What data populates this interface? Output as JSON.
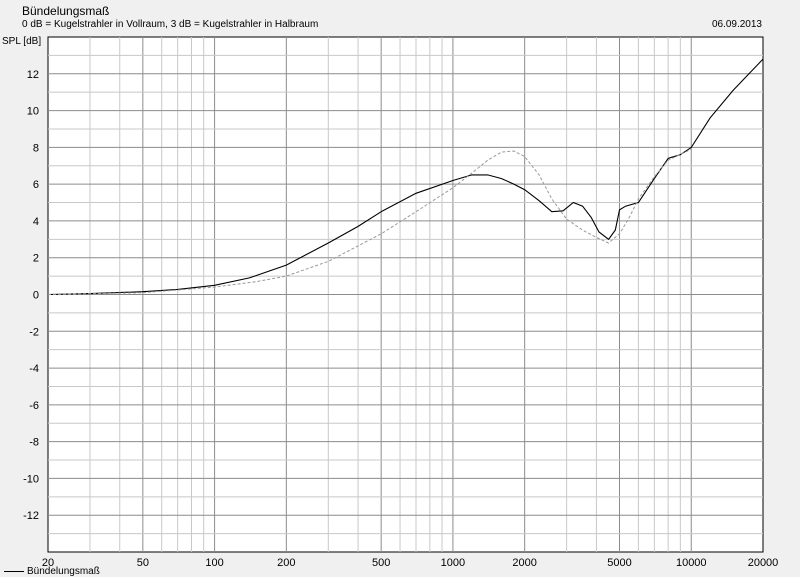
{
  "chart_data": {
    "type": "line",
    "title": "Bündelungsmaß",
    "subtitle": "0 dB = Kugelstrahler in Vollraum, 3 dB = Kugelstrahler in Halbraum",
    "date": "06.09.2013",
    "ylabel": "SPL [dB]",
    "xscale": "log",
    "xlim": [
      20,
      20000
    ],
    "ylim": [
      -14,
      14
    ],
    "grid": true,
    "legend_position": "bottom-left",
    "x_tick_labels": [
      "20",
      "50",
      "100",
      "200",
      "500",
      "1000",
      "2000",
      "5000",
      "10000",
      "20000"
    ],
    "y_tick_labels": [
      "12",
      "10",
      "8",
      "6",
      "4",
      "2",
      "0",
      "-2",
      "-4",
      "-6",
      "-8",
      "-10",
      "-12"
    ],
    "series": [
      {
        "name": "Bündelungsmaß",
        "style": "solid",
        "color": "#000000",
        "x": [
          20,
          30,
          50,
          70,
          100,
          140,
          200,
          300,
          400,
          500,
          700,
          1000,
          1200,
          1400,
          1600,
          1800,
          2000,
          2300,
          2600,
          2900,
          3200,
          3500,
          3800,
          4100,
          4500,
          4800,
          5000,
          5300,
          6000,
          7000,
          8000,
          9000,
          10000,
          12000,
          15000,
          20000
        ],
        "y": [
          0.0,
          0.05,
          0.15,
          0.28,
          0.5,
          0.9,
          1.6,
          2.8,
          3.7,
          4.5,
          5.5,
          6.2,
          6.5,
          6.5,
          6.3,
          6.0,
          5.7,
          5.1,
          4.5,
          4.55,
          5.0,
          4.8,
          4.2,
          3.4,
          3.0,
          3.5,
          4.6,
          4.8,
          5.0,
          6.3,
          7.4,
          7.6,
          8.0,
          9.6,
          11.1,
          12.8
        ]
      },
      {
        "name": "",
        "style": "dashed",
        "color": "#999999",
        "x": [
          20,
          50,
          100,
          150,
          200,
          300,
          500,
          700,
          1000,
          1200,
          1400,
          1600,
          1800,
          2000,
          2300,
          2600,
          3000,
          3500,
          4000,
          4500,
          5000,
          5500,
          6000,
          7000,
          8000,
          10000
        ],
        "y": [
          0.0,
          0.1,
          0.4,
          0.7,
          1.0,
          1.8,
          3.3,
          4.5,
          5.8,
          6.6,
          7.3,
          7.75,
          7.8,
          7.5,
          6.5,
          5.2,
          4.1,
          3.5,
          3.1,
          2.8,
          3.3,
          4.2,
          5.2,
          6.4,
          7.3,
          7.9
        ]
      }
    ]
  }
}
